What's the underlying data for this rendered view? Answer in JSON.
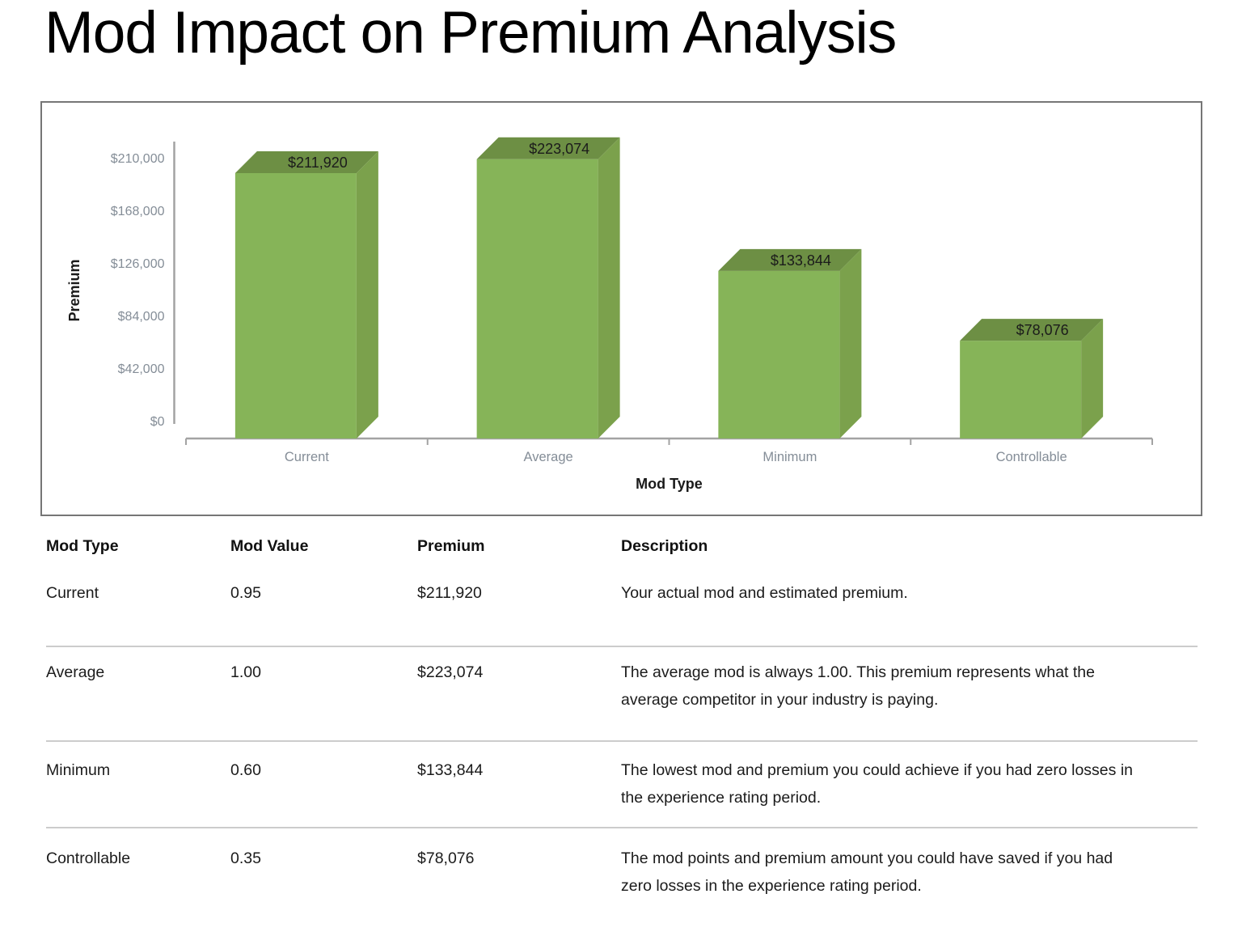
{
  "page": {
    "title": "Mod Impact on Premium Analysis"
  },
  "chart_data": {
    "type": "bar",
    "style": "3d",
    "categories": [
      "Current",
      "Average",
      "Minimum",
      "Controllable"
    ],
    "values": [
      211920,
      223074,
      133844,
      78076
    ],
    "data_labels": [
      "$211,920",
      "$223,074",
      "$133,844",
      "$78,076"
    ],
    "xlabel": "Mod Type",
    "ylabel": "Premium",
    "ylim": [
      0,
      210000
    ],
    "yticks": [
      0,
      42000,
      84000,
      126000,
      168000,
      210000
    ],
    "ytick_labels": [
      "$0",
      "$42,000",
      "$84,000",
      "$126,000",
      "$168,000",
      "$210,000"
    ],
    "grid": "off",
    "legend": "none",
    "colors": {
      "bar_front": "#86b458",
      "bar_top": "#6d8f44",
      "bar_side": "#7ba14c",
      "axis": "#a3a3a3",
      "tick_label": "#848d97",
      "axis_title": "#1a1a1a",
      "data_label": "#1b1b1b"
    }
  },
  "table": {
    "headers": [
      "Mod Type",
      "Mod Value",
      "Premium",
      "Description"
    ],
    "rows": [
      {
        "mod_type": "Current",
        "mod_value": "0.95",
        "premium": "$211,920",
        "description": "Your actual mod and estimated premium."
      },
      {
        "mod_type": "Average",
        "mod_value": "1.00",
        "premium": "$223,074",
        "description": "The average mod is always 1.00. This premium represents what the average competitor in your industry is paying."
      },
      {
        "mod_type": "Minimum",
        "mod_value": "0.60",
        "premium": "$133,844",
        "description": "The lowest mod and premium you could achieve if you had zero losses in the experience rating period."
      },
      {
        "mod_type": "Controllable",
        "mod_value": "0.35",
        "premium": "$78,076",
        "description": "The mod points and premium amount you could have saved if you had zero losses in the experience rating period."
      }
    ]
  }
}
